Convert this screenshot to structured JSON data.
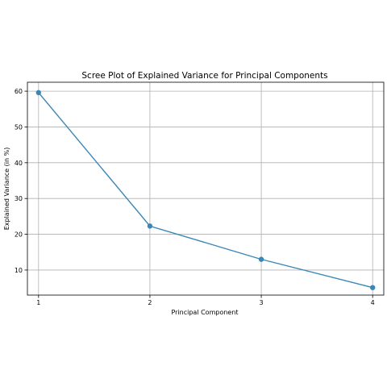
{
  "chart_data": {
    "type": "line",
    "title": "Scree Plot of Explained Variance for Principal Components",
    "xlabel": "Principal Component",
    "ylabel": "Explained Variance (in %)",
    "x": [
      1,
      2,
      3,
      4
    ],
    "x_tick_labels": [
      "1",
      "2",
      "3",
      "4"
    ],
    "y_ticks": [
      10,
      20,
      30,
      40,
      50,
      60
    ],
    "y_tick_labels": [
      "10",
      "20",
      "30",
      "40",
      "50",
      "60"
    ],
    "xlim": [
      0.9,
      4.1
    ],
    "ylim": [
      3,
      62.5
    ],
    "grid": true,
    "series": [
      {
        "values": [
          59.6,
          22.3,
          13.0,
          5.1
        ]
      }
    ],
    "colors": {
      "series": "#3a87b7",
      "grid": "#b0b0b0"
    }
  }
}
